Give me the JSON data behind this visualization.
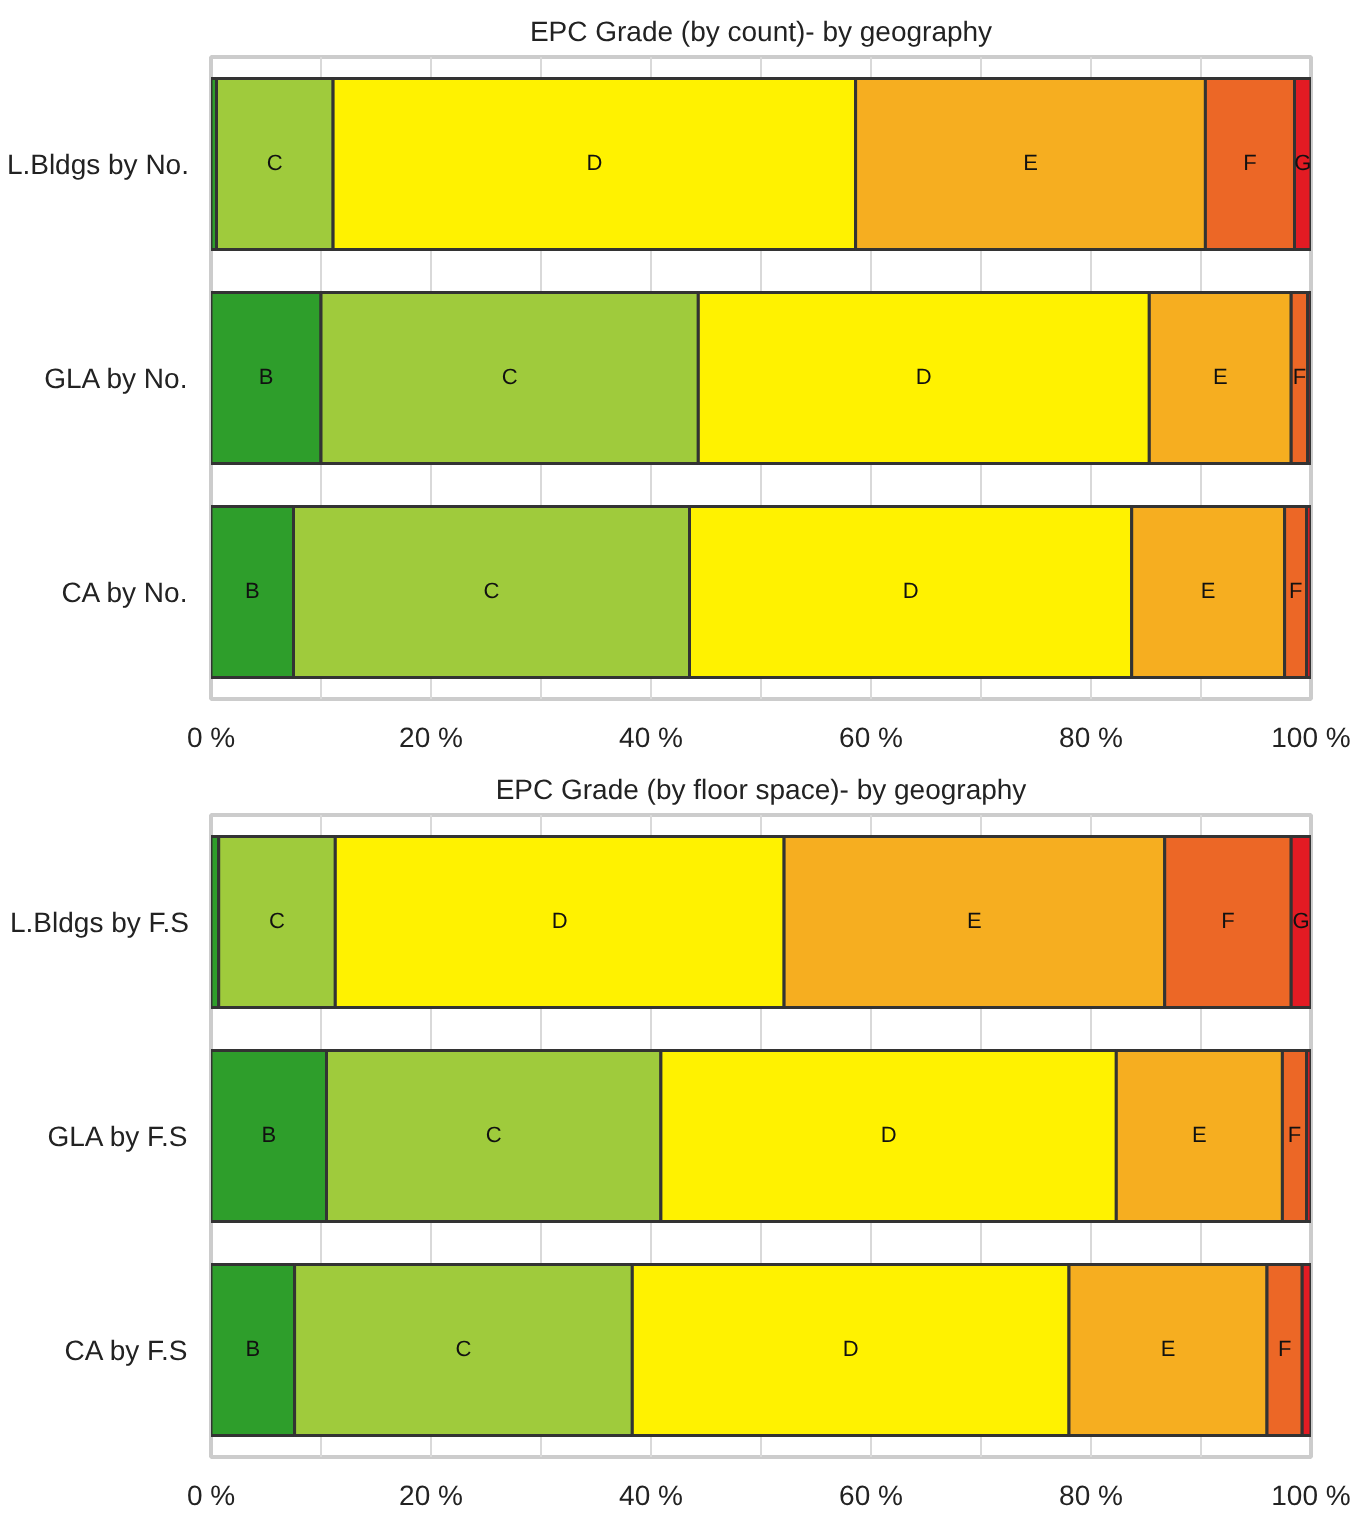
{
  "chart_data": [
    {
      "type": "bar",
      "orientation": "horizontal",
      "stacked": true,
      "title": "EPC Grade (by count)- by geography",
      "categories": [
        "L.Bldgs by No.",
        "GLA by No.",
        "CA by No."
      ],
      "series": [
        {
          "name": "B",
          "color": "#2e9e2b",
          "values": [
            0.5,
            10.0,
            7.5
          ]
        },
        {
          "name": "C",
          "color": "#9fcb3c",
          "values": [
            10.6,
            34.3,
            36.0
          ]
        },
        {
          "name": "D",
          "color": "#fff200",
          "values": [
            47.5,
            41.0,
            40.2
          ]
        },
        {
          "name": "E",
          "color": "#f6ae20",
          "values": [
            31.8,
            12.9,
            13.9
          ]
        },
        {
          "name": "F",
          "color": "#ec6726",
          "values": [
            8.1,
            1.5,
            2.0
          ]
        },
        {
          "name": "G",
          "color": "#e31b23",
          "values": [
            1.5,
            0.3,
            0.4
          ]
        }
      ],
      "xlim": [
        0,
        100
      ],
      "xticks": [
        {
          "value": 0,
          "label": "0 %"
        },
        {
          "value": 10,
          "label": null
        },
        {
          "value": 20,
          "label": "20 %"
        },
        {
          "value": 30,
          "label": null
        },
        {
          "value": 40,
          "label": "40 %"
        },
        {
          "value": 50,
          "label": null
        },
        {
          "value": 60,
          "label": "60 %"
        },
        {
          "value": 70,
          "label": null
        },
        {
          "value": 80,
          "label": "80 %"
        },
        {
          "value": 90,
          "label": null
        },
        {
          "value": 100,
          "label": "100 %"
        }
      ],
      "grid": "x",
      "legend": false
    },
    {
      "type": "bar",
      "orientation": "horizontal",
      "stacked": true,
      "title": "EPC Grade (by floor space)- by geography",
      "categories": [
        "L.Bldgs by F.S",
        "GLA by F.S",
        "CA by F.S"
      ],
      "series": [
        {
          "name": "B",
          "color": "#2e9e2b",
          "values": [
            0.7,
            10.5,
            7.6
          ]
        },
        {
          "name": "C",
          "color": "#9fcb3c",
          "values": [
            10.6,
            30.4,
            30.7
          ]
        },
        {
          "name": "D",
          "color": "#fff200",
          "values": [
            40.8,
            41.4,
            39.7
          ]
        },
        {
          "name": "E",
          "color": "#f6ae20",
          "values": [
            34.6,
            15.1,
            18.0
          ]
        },
        {
          "name": "F",
          "color": "#ec6726",
          "values": [
            11.5,
            2.2,
            3.2
          ]
        },
        {
          "name": "G",
          "color": "#e31b23",
          "values": [
            1.8,
            0.4,
            0.8
          ]
        }
      ],
      "xlim": [
        0,
        100
      ],
      "xticks": [
        {
          "value": 0,
          "label": "0 %"
        },
        {
          "value": 10,
          "label": null
        },
        {
          "value": 20,
          "label": "20 %"
        },
        {
          "value": 30,
          "label": null
        },
        {
          "value": 40,
          "label": "40 %"
        },
        {
          "value": 50,
          "label": null
        },
        {
          "value": 60,
          "label": "60 %"
        },
        {
          "value": 70,
          "label": null
        },
        {
          "value": 80,
          "label": "80 %"
        },
        {
          "value": 90,
          "label": null
        },
        {
          "value": 100,
          "label": "100 %"
        }
      ],
      "grid": "x",
      "legend": false
    }
  ]
}
